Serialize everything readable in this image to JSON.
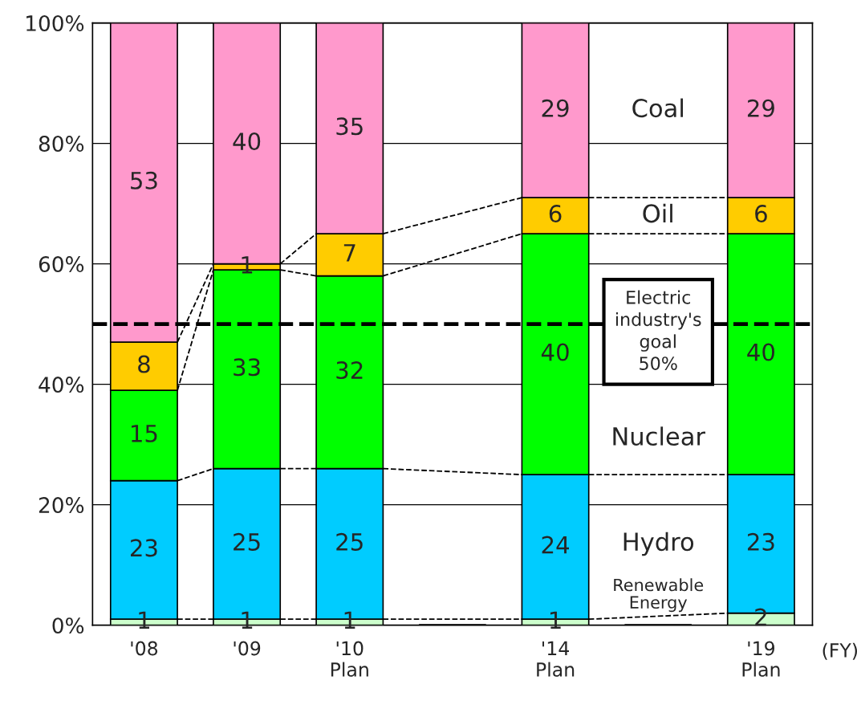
{
  "chart_data": {
    "type": "bar",
    "stacked": true,
    "xlabel": "(FY)",
    "categories": [
      "'08",
      "'09",
      "'10\nPlan",
      null,
      "'14\nPlan",
      null,
      "'19\nPlan"
    ],
    "series": [
      {
        "name": "Renewable\nEnergy",
        "color": "#ccffcc",
        "values": [
          1,
          1,
          1,
          null,
          1,
          null,
          2
        ]
      },
      {
        "name": "Hydro",
        "color": "#00ccff",
        "values": [
          23,
          25,
          25,
          null,
          24,
          null,
          23
        ]
      },
      {
        "name": "Nuclear",
        "color": "#00ff00",
        "values": [
          15,
          33,
          32,
          null,
          40,
          null,
          40
        ]
      },
      {
        "name": "Oil",
        "color": "#ffcc00",
        "values": [
          8,
          1,
          7,
          null,
          6,
          null,
          6
        ]
      },
      {
        "name": "Coal",
        "color": "#ff99cc",
        "values": [
          53,
          40,
          35,
          null,
          29,
          null,
          29
        ]
      }
    ],
    "data_labels": true,
    "ylim": [
      0,
      100
    ],
    "yticks": [
      {
        "value": 0,
        "label": "0%"
      },
      {
        "value": 20,
        "label": "20%"
      },
      {
        "value": 40,
        "label": "40%"
      },
      {
        "value": 60,
        "label": "60%"
      },
      {
        "value": 80,
        "label": "80%"
      },
      {
        "value": 100,
        "label": "100%"
      }
    ],
    "grid": "y",
    "legend": false,
    "ref_lines": [
      {
        "axis": "y",
        "value": 50,
        "label": "Electric\nindustry's\ngoal\n50%",
        "color": "#000000",
        "line_style": "dashed"
      }
    ]
  }
}
